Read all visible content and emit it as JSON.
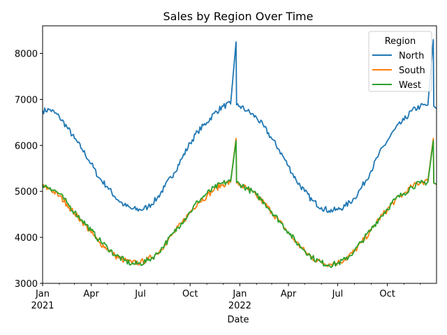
{
  "chart_data": {
    "type": "line",
    "title": "Sales by Region Over Time",
    "xlabel": "Date",
    "ylabel": "",
    "x_range": [
      "2021-01-01",
      "2022-12-31"
    ],
    "ylim": [
      3000,
      8600
    ],
    "grid": false,
    "legend": {
      "title": "Region",
      "placement": "top-right"
    },
    "yticks": [
      3000,
      4000,
      5000,
      6000,
      7000,
      8000
    ],
    "xticks": [
      {
        "date": "2021-01-01",
        "label": "Jan",
        "sublabel": "2021"
      },
      {
        "date": "2021-04-01",
        "label": "Apr",
        "sublabel": ""
      },
      {
        "date": "2021-07-01",
        "label": "Jul",
        "sublabel": ""
      },
      {
        "date": "2021-10-01",
        "label": "Oct",
        "sublabel": ""
      },
      {
        "date": "2022-01-01",
        "label": "Jan",
        "sublabel": "2022"
      },
      {
        "date": "2022-04-01",
        "label": "Apr",
        "sublabel": ""
      },
      {
        "date": "2022-07-01",
        "label": "Jul",
        "sublabel": ""
      },
      {
        "date": "2022-10-01",
        "label": "Oct",
        "sublabel": ""
      }
    ],
    "series": [
      {
        "name": "North",
        "color": "#1f77b4",
        "points": [
          [
            "2021-01-01",
            6750
          ],
          [
            "2021-01-15",
            6780
          ],
          [
            "2021-02-01",
            6620
          ],
          [
            "2021-02-15",
            6400
          ],
          [
            "2021-03-01",
            6150
          ],
          [
            "2021-03-15",
            5920
          ],
          [
            "2021-04-01",
            5600
          ],
          [
            "2021-04-15",
            5300
          ],
          [
            "2021-05-01",
            5100
          ],
          [
            "2021-05-15",
            4880
          ],
          [
            "2021-06-01",
            4700
          ],
          [
            "2021-06-15",
            4620
          ],
          [
            "2021-07-01",
            4600
          ],
          [
            "2021-07-15",
            4660
          ],
          [
            "2021-08-01",
            4850
          ],
          [
            "2021-08-15",
            5100
          ],
          [
            "2021-09-01",
            5400
          ],
          [
            "2021-09-15",
            5700
          ],
          [
            "2021-10-01",
            6050
          ],
          [
            "2021-10-15",
            6300
          ],
          [
            "2021-11-01",
            6500
          ],
          [
            "2021-11-15",
            6700
          ],
          [
            "2021-12-01",
            6850
          ],
          [
            "2021-12-15",
            6900
          ],
          [
            "2021-12-25",
            8250
          ],
          [
            "2021-12-26",
            6880
          ],
          [
            "2022-01-01",
            6850
          ],
          [
            "2022-01-15",
            6750
          ],
          [
            "2022-02-01",
            6600
          ],
          [
            "2022-02-15",
            6400
          ],
          [
            "2022-03-01",
            6150
          ],
          [
            "2022-03-15",
            5900
          ],
          [
            "2022-04-01",
            5550
          ],
          [
            "2022-04-15",
            5250
          ],
          [
            "2022-05-01",
            5000
          ],
          [
            "2022-05-15",
            4800
          ],
          [
            "2022-06-01",
            4650
          ],
          [
            "2022-06-15",
            4580
          ],
          [
            "2022-07-01",
            4600
          ],
          [
            "2022-07-15",
            4680
          ],
          [
            "2022-08-01",
            4850
          ],
          [
            "2022-08-15",
            5100
          ],
          [
            "2022-09-01",
            5450
          ],
          [
            "2022-09-15",
            5800
          ],
          [
            "2022-10-01",
            6100
          ],
          [
            "2022-10-15",
            6350
          ],
          [
            "2022-11-01",
            6550
          ],
          [
            "2022-11-15",
            6750
          ],
          [
            "2022-12-01",
            6850
          ],
          [
            "2022-12-15",
            6880
          ],
          [
            "2022-12-25",
            8300
          ],
          [
            "2022-12-26",
            6850
          ],
          [
            "2022-12-31",
            6800
          ]
        ]
      },
      {
        "name": "South",
        "color": "#ff7f0e",
        "points": [
          [
            "2021-01-01",
            5100
          ],
          [
            "2021-01-15",
            5050
          ],
          [
            "2021-02-01",
            4900
          ],
          [
            "2021-02-15",
            4720
          ],
          [
            "2021-03-01",
            4520
          ],
          [
            "2021-03-15",
            4350
          ],
          [
            "2021-04-01",
            4100
          ],
          [
            "2021-04-15",
            3900
          ],
          [
            "2021-05-01",
            3750
          ],
          [
            "2021-05-15",
            3600
          ],
          [
            "2021-06-01",
            3500
          ],
          [
            "2021-06-15",
            3450
          ],
          [
            "2021-07-01",
            3450
          ],
          [
            "2021-07-15",
            3520
          ],
          [
            "2021-08-01",
            3650
          ],
          [
            "2021-08-15",
            3850
          ],
          [
            "2021-09-01",
            4100
          ],
          [
            "2021-09-15",
            4300
          ],
          [
            "2021-10-01",
            4550
          ],
          [
            "2021-10-15",
            4750
          ],
          [
            "2021-11-01",
            4900
          ],
          [
            "2021-11-15",
            5050
          ],
          [
            "2021-12-01",
            5150
          ],
          [
            "2021-12-15",
            5200
          ],
          [
            "2021-12-25",
            6150
          ],
          [
            "2021-12-26",
            5180
          ],
          [
            "2022-01-01",
            5150
          ],
          [
            "2022-01-15",
            5050
          ],
          [
            "2022-02-01",
            4900
          ],
          [
            "2022-02-15",
            4750
          ],
          [
            "2022-03-01",
            4550
          ],
          [
            "2022-03-15",
            4350
          ],
          [
            "2022-04-01",
            4100
          ],
          [
            "2022-04-15",
            3900
          ],
          [
            "2022-05-01",
            3700
          ],
          [
            "2022-05-15",
            3550
          ],
          [
            "2022-06-01",
            3450
          ],
          [
            "2022-06-15",
            3420
          ],
          [
            "2022-07-01",
            3450
          ],
          [
            "2022-07-15",
            3520
          ],
          [
            "2022-08-01",
            3700
          ],
          [
            "2022-08-15",
            3900
          ],
          [
            "2022-09-01",
            4150
          ],
          [
            "2022-09-15",
            4400
          ],
          [
            "2022-10-01",
            4600
          ],
          [
            "2022-10-15",
            4800
          ],
          [
            "2022-11-01",
            4950
          ],
          [
            "2022-11-15",
            5100
          ],
          [
            "2022-12-01",
            5200
          ],
          [
            "2022-12-15",
            5220
          ],
          [
            "2022-12-25",
            6150
          ],
          [
            "2022-12-26",
            5180
          ],
          [
            "2022-12-31",
            5150
          ]
        ]
      },
      {
        "name": "West",
        "color": "#2ca02c",
        "points": [
          [
            "2021-01-01",
            5150
          ],
          [
            "2021-01-15",
            5080
          ],
          [
            "2021-02-01",
            4950
          ],
          [
            "2021-02-15",
            4750
          ],
          [
            "2021-03-01",
            4550
          ],
          [
            "2021-03-15",
            4380
          ],
          [
            "2021-04-01",
            4150
          ],
          [
            "2021-04-15",
            3950
          ],
          [
            "2021-05-01",
            3780
          ],
          [
            "2021-05-15",
            3620
          ],
          [
            "2021-06-01",
            3500
          ],
          [
            "2021-06-15",
            3420
          ],
          [
            "2021-07-01",
            3430
          ],
          [
            "2021-07-15",
            3500
          ],
          [
            "2021-08-01",
            3640
          ],
          [
            "2021-08-15",
            3850
          ],
          [
            "2021-09-01",
            4100
          ],
          [
            "2021-09-15",
            4320
          ],
          [
            "2021-10-01",
            4550
          ],
          [
            "2021-10-15",
            4780
          ],
          [
            "2021-11-01",
            4950
          ],
          [
            "2021-11-15",
            5080
          ],
          [
            "2021-12-01",
            5180
          ],
          [
            "2021-12-15",
            5220
          ],
          [
            "2021-12-25",
            6100
          ],
          [
            "2021-12-26",
            5200
          ],
          [
            "2022-01-01",
            5160
          ],
          [
            "2022-01-15",
            5060
          ],
          [
            "2022-02-01",
            4920
          ],
          [
            "2022-02-15",
            4760
          ],
          [
            "2022-03-01",
            4560
          ],
          [
            "2022-03-15",
            4360
          ],
          [
            "2022-04-01",
            4120
          ],
          [
            "2022-04-15",
            3900
          ],
          [
            "2022-05-01",
            3720
          ],
          [
            "2022-05-15",
            3560
          ],
          [
            "2022-06-01",
            3450
          ],
          [
            "2022-06-15",
            3400
          ],
          [
            "2022-07-01",
            3430
          ],
          [
            "2022-07-15",
            3520
          ],
          [
            "2022-08-01",
            3700
          ],
          [
            "2022-08-15",
            3920
          ],
          [
            "2022-09-01",
            4170
          ],
          [
            "2022-09-15",
            4400
          ],
          [
            "2022-10-01",
            4620
          ],
          [
            "2022-10-15",
            4820
          ],
          [
            "2022-11-01",
            4960
          ],
          [
            "2022-11-15",
            5100
          ],
          [
            "2022-12-01",
            5180
          ],
          [
            "2022-12-15",
            5200
          ],
          [
            "2022-12-25",
            6100
          ],
          [
            "2022-12-26",
            5180
          ],
          [
            "2022-12-31",
            5160
          ]
        ]
      }
    ]
  }
}
